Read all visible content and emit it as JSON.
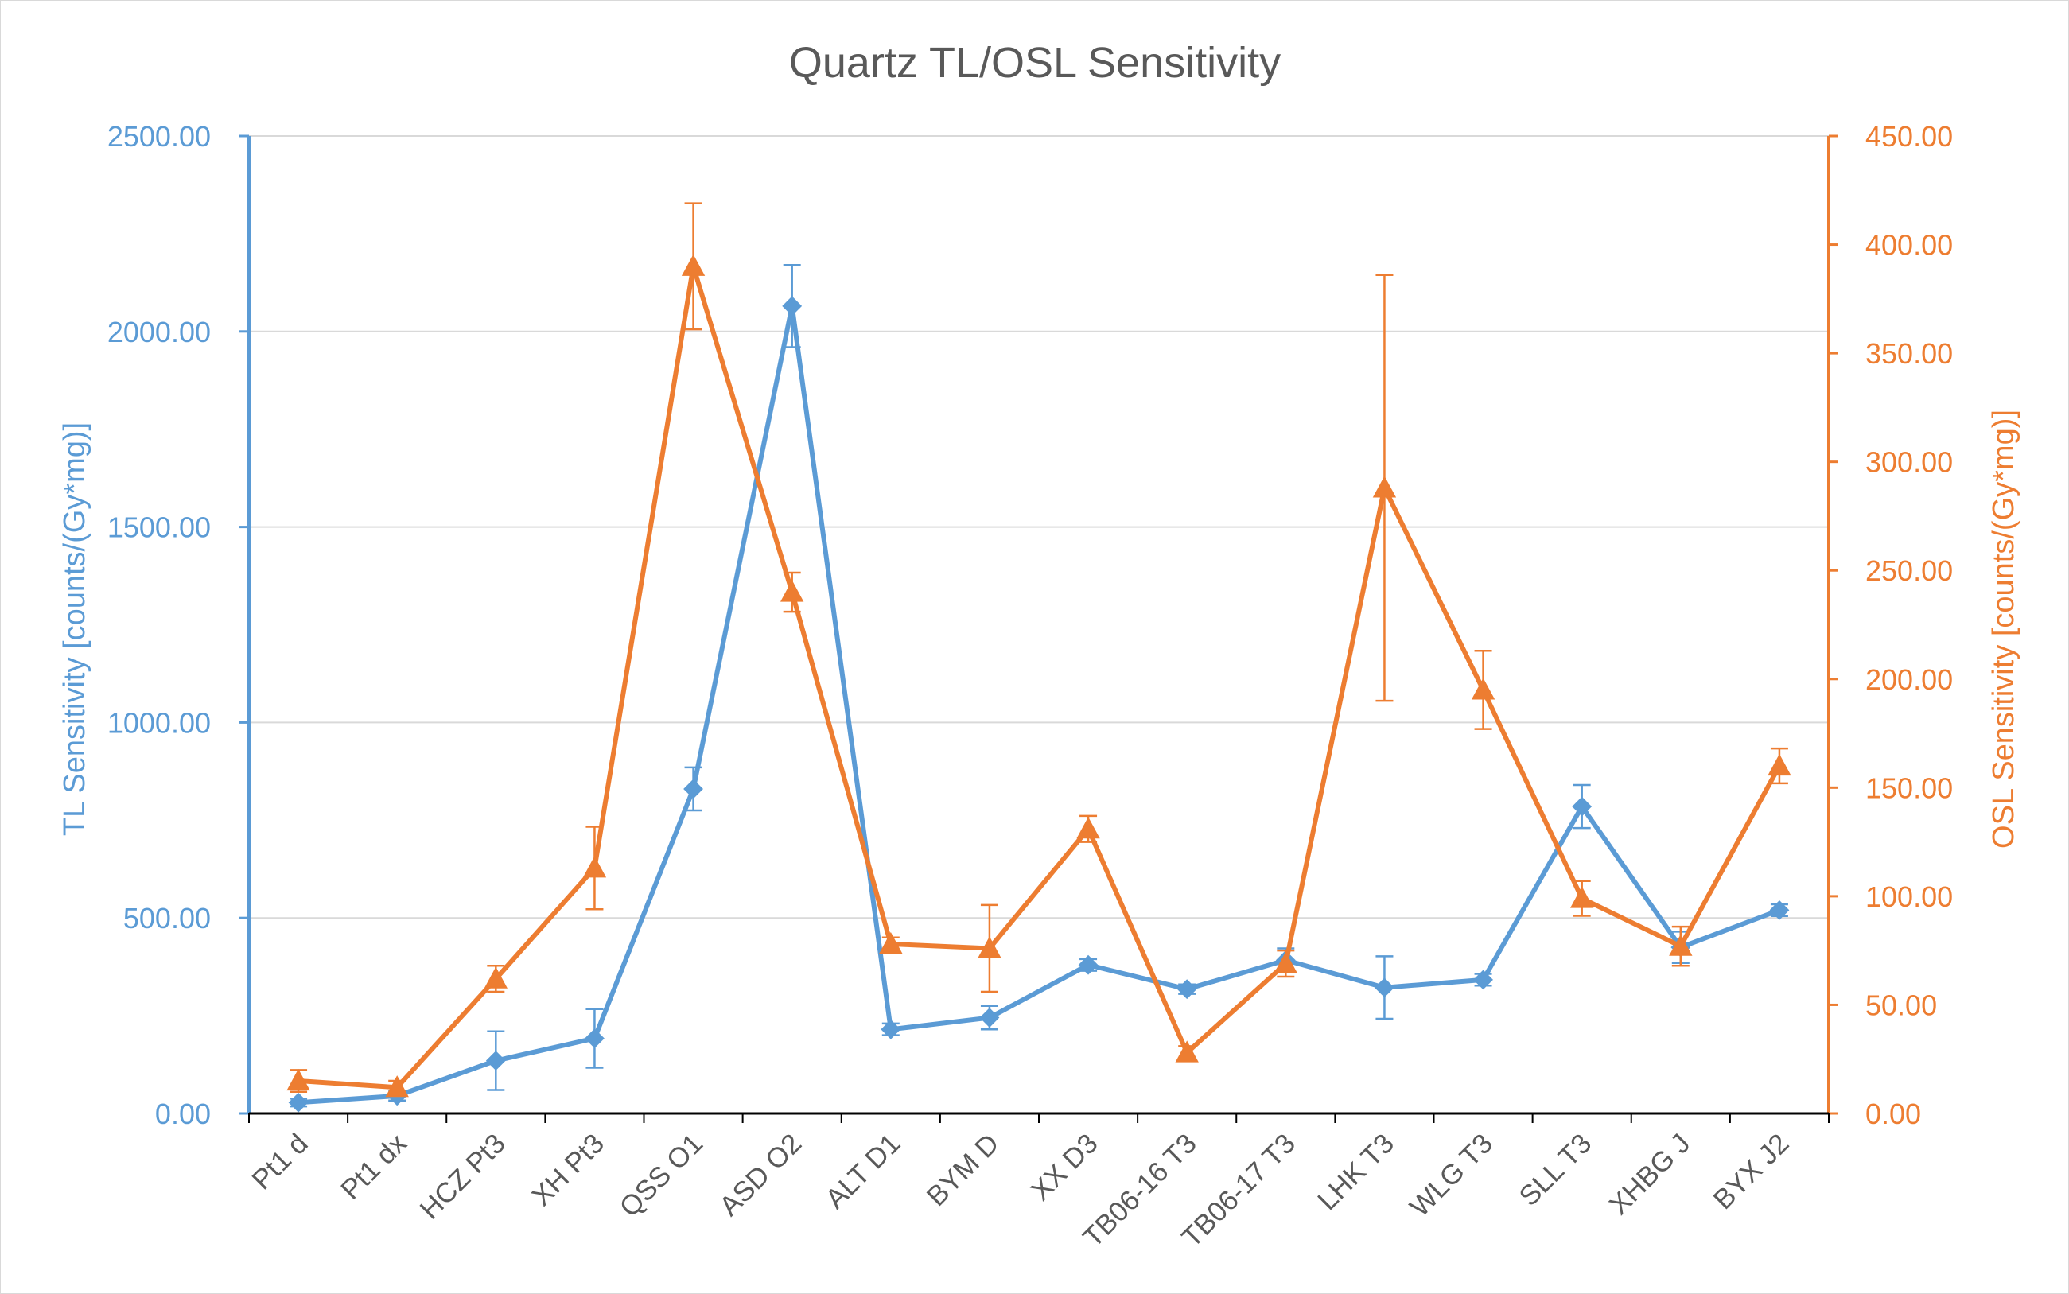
{
  "chart_data": {
    "type": "line",
    "title": "Quartz TL/OSL Sensitivity",
    "categories": [
      "Pt1 d",
      "Pt1 dx",
      "HCZ Pt3",
      "XH Pt3",
      "QSS O1",
      "ASD O2",
      "ALT D1",
      "BYM D",
      "XX D3",
      "TB06-16 T3",
      "TB06-17 T3",
      "LHK T3",
      "WLG T3",
      "SLL T3",
      "XHBG J",
      "BYX J2"
    ],
    "y_left": {
      "label": "TL Sensitivity [counts/(Gy*mg)]",
      "ylim": [
        0,
        2500
      ],
      "ticks": [
        "0.00",
        "500.00",
        "1000.00",
        "1500.00",
        "2000.00",
        "2500.00"
      ]
    },
    "y_right": {
      "label": "OSL Sensitivity [counts/(Gy*mg)]",
      "ylim": [
        0,
        450
      ],
      "ticks": [
        "0.00",
        "50.00",
        "100.00",
        "150.00",
        "200.00",
        "250.00",
        "300.00",
        "350.00",
        "400.00",
        "450.00"
      ]
    },
    "grid": true,
    "series": [
      {
        "axis": "left",
        "marker": "diamond",
        "color": "#5b9bd5",
        "values": [
          28,
          45,
          135,
          192,
          830,
          2065,
          215,
          245,
          380,
          318,
          392,
          322,
          342,
          785,
          425,
          520
        ],
        "errors": [
          10,
          12,
          75,
          75,
          55,
          105,
          15,
          30,
          15,
          12,
          30,
          80,
          15,
          55,
          40,
          15
        ]
      },
      {
        "axis": "right",
        "marker": "triangle",
        "color": "#ed7d31",
        "values": [
          15,
          12,
          62,
          113,
          390,
          240,
          78,
          76,
          131,
          28,
          69,
          288,
          195,
          99,
          77,
          160
        ],
        "errors": [
          5,
          3,
          6,
          19,
          29,
          9,
          3,
          20,
          6,
          3,
          6,
          98,
          18,
          8,
          9,
          8
        ]
      }
    ]
  }
}
